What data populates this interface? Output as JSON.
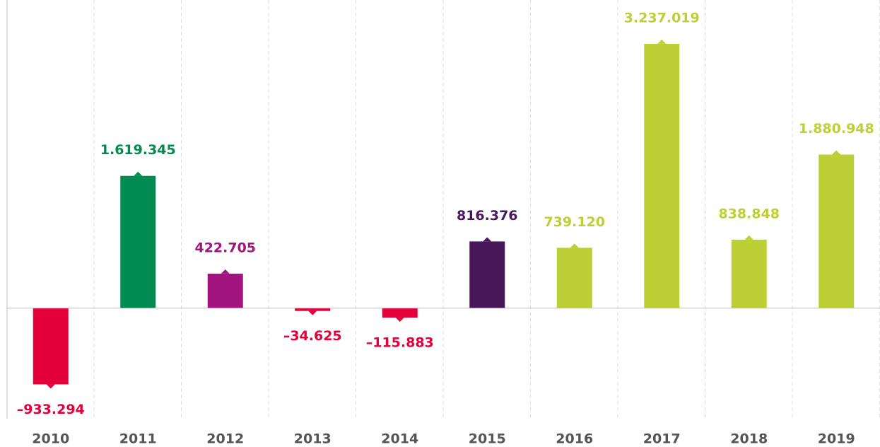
{
  "chart_data": {
    "type": "bar",
    "categories": [
      "2010",
      "2011",
      "2012",
      "2013",
      "2014",
      "2015",
      "2016",
      "2017",
      "2018",
      "2019"
    ],
    "values": [
      -933294,
      1619345,
      422705,
      -34625,
      -115883,
      816376,
      739120,
      3237019,
      838848,
      1880948
    ],
    "value_labels": [
      "–933.294",
      "1.619.345",
      "422.705",
      "–34.625",
      "–115.883",
      "816.376",
      "739.120",
      "3.237.019",
      "838.848",
      "1.880.948"
    ],
    "colors": [
      "#e4003b",
      "#008c50",
      "#a3157e",
      "#e4003b",
      "#e4003b",
      "#48175a",
      "#bcd035",
      "#bcd035",
      "#bcd035",
      "#bcd035"
    ],
    "ylim": [
      -1250000,
      3600000
    ],
    "grid": true
  }
}
